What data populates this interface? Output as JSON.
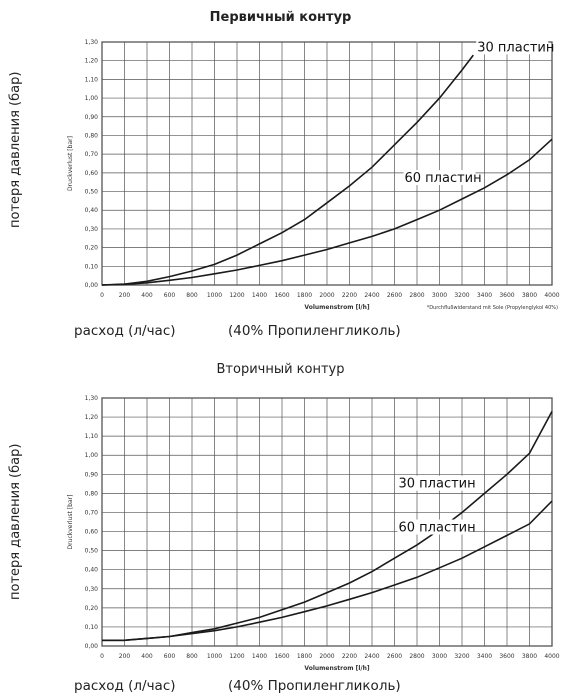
{
  "page": {
    "captions": {
      "flow": "расход (л/час)",
      "medium": "(40% Пропиленгликоль)",
      "pressure_loss": "потеря давления (бар)"
    }
  },
  "chart_data": [
    {
      "type": "line",
      "title": "Первичный контур",
      "xlabel": "Volumenstrom [l/h]",
      "ylabel": "Druckverlust [bar]",
      "note": "*Durchflußwiderstand mit Sole (Propylenglykol 40%)",
      "xlim": [
        0,
        4000
      ],
      "ylim": [
        0,
        1.3
      ],
      "x_ticks": [
        "0",
        "200",
        "400",
        "600",
        "800",
        "1000",
        "1200",
        "1400",
        "1600",
        "1800",
        "2000",
        "2200",
        "2400",
        "2600",
        "2800",
        "3000",
        "3200",
        "3400",
        "3600",
        "3800",
        "4000"
      ],
      "y_ticks": [
        "0,00",
        "0,10",
        "0,20",
        "0,30",
        "0,40",
        "0,50",
        "0,60",
        "0,70",
        "0,80",
        "0,90",
        "1,00",
        "1,10",
        "1,20",
        "1,30"
      ],
      "grid": true,
      "series": [
        {
          "name": "30 пластин",
          "x": [
            0,
            200,
            400,
            600,
            800,
            1000,
            1200,
            1400,
            1600,
            1800,
            2000,
            2200,
            2400,
            2600,
            2800,
            3000,
            3200,
            3300
          ],
          "y": [
            0.0,
            0.005,
            0.02,
            0.045,
            0.075,
            0.11,
            0.16,
            0.22,
            0.28,
            0.35,
            0.44,
            0.53,
            0.63,
            0.75,
            0.87,
            1.0,
            1.15,
            1.23
          ]
        },
        {
          "name": "60 пластин",
          "x": [
            0,
            200,
            400,
            600,
            800,
            1000,
            1200,
            1400,
            1600,
            1800,
            2000,
            2200,
            2400,
            2600,
            2800,
            3000,
            3200,
            3400,
            3600,
            3800,
            4000
          ],
          "y": [
            0.0,
            0.003,
            0.012,
            0.025,
            0.04,
            0.06,
            0.08,
            0.105,
            0.13,
            0.16,
            0.19,
            0.225,
            0.26,
            0.3,
            0.35,
            0.4,
            0.46,
            0.52,
            0.59,
            0.67,
            0.78
          ]
        }
      ]
    },
    {
      "type": "line",
      "title": "Вторичный контур",
      "xlabel": "Volumenstrom [l/h]",
      "ylabel": "Druckverlust [bar]",
      "xlim": [
        0,
        4000
      ],
      "ylim": [
        0,
        1.3
      ],
      "x_ticks": [
        "0",
        "200",
        "400",
        "600",
        "800",
        "1000",
        "1200",
        "1400",
        "1600",
        "1800",
        "2000",
        "2200",
        "2400",
        "2600",
        "2800",
        "3000",
        "3200",
        "3400",
        "3600",
        "3800",
        "4000"
      ],
      "y_ticks": [
        "0,00",
        "0,10",
        "0,20",
        "0,30",
        "0,40",
        "0,50",
        "0,60",
        "0,70",
        "0,80",
        "0,90",
        "1,00",
        "1,10",
        "1,20",
        "1,30"
      ],
      "grid": true,
      "series": [
        {
          "name": "30 пластин",
          "x": [
            0,
            200,
            400,
            600,
            800,
            1000,
            1200,
            1400,
            1600,
            1800,
            2000,
            2200,
            2400,
            2600,
            2800,
            3000,
            3200,
            3400,
            3600,
            3800,
            4000
          ],
          "y": [
            0.03,
            0.03,
            0.04,
            0.05,
            0.07,
            0.09,
            0.12,
            0.15,
            0.19,
            0.23,
            0.28,
            0.33,
            0.39,
            0.46,
            0.53,
            0.61,
            0.7,
            0.8,
            0.9,
            1.01,
            1.23
          ]
        },
        {
          "name": "60 пластин",
          "x": [
            0,
            200,
            400,
            600,
            800,
            1000,
            1200,
            1400,
            1600,
            1800,
            2000,
            2200,
            2400,
            2600,
            2800,
            3000,
            3200,
            3400,
            3600,
            3800,
            4000
          ],
          "y": [
            0.03,
            0.03,
            0.04,
            0.05,
            0.065,
            0.08,
            0.1,
            0.125,
            0.15,
            0.18,
            0.21,
            0.245,
            0.28,
            0.32,
            0.36,
            0.41,
            0.46,
            0.52,
            0.58,
            0.64,
            0.76
          ]
        }
      ]
    }
  ]
}
